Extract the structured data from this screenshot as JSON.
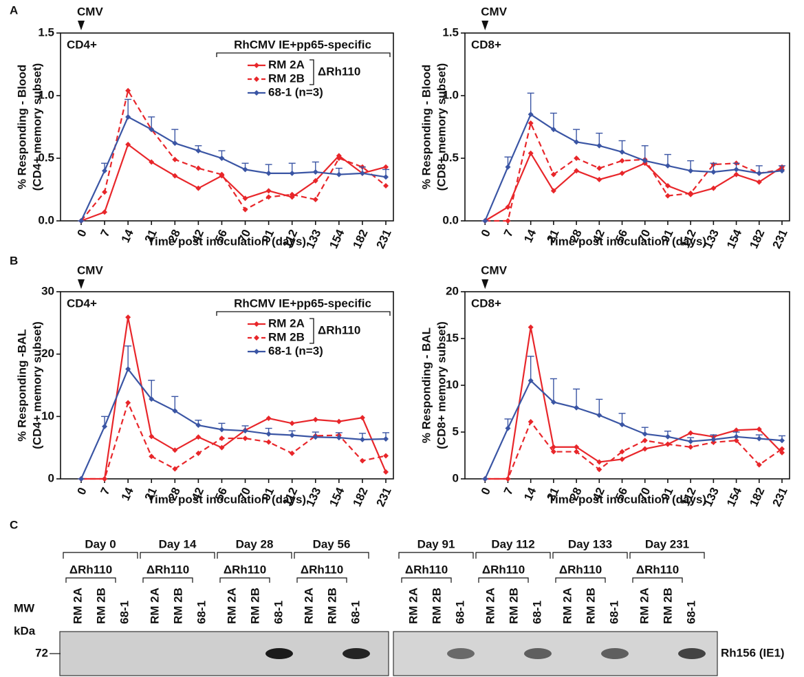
{
  "panel_labels": [
    "A",
    "B",
    "C"
  ],
  "chart_data": [
    {
      "type": "line",
      "corner_label": "CD4+",
      "annotation": "CMV",
      "ylabel": [
        "% Responding - Blood",
        "(CD4+ memory subset)"
      ],
      "xlabel": "Time post inoculation (days)",
      "categories": [
        "0",
        "7",
        "14",
        "21",
        "28",
        "42",
        "56",
        "70",
        "91",
        "112",
        "133",
        "154",
        "182",
        "231"
      ],
      "ylim": [
        0,
        1.5
      ],
      "yticks": [
        {
          "value": 0,
          "label": "0.0"
        },
        {
          "value": 0.5,
          "label": "0.5"
        },
        {
          "value": 1,
          "label": "1.0"
        },
        {
          "value": 1.5,
          "label": "1.5"
        }
      ],
      "legend_title": "RhCMV IE+pp65-specific",
      "legend_group_label": "ΔRh110",
      "series": [
        {
          "name": "RM 2A",
          "color": "#e8262a",
          "dashed": false,
          "values": [
            0,
            0.07,
            0.61,
            0.47,
            0.36,
            0.26,
            0.36,
            0.18,
            0.24,
            0.19,
            0.32,
            0.52,
            0.38,
            0.43
          ]
        },
        {
          "name": "RM 2B",
          "color": "#e8262a",
          "dashed": true,
          "values": [
            0,
            0.23,
            1.04,
            0.73,
            0.49,
            0.42,
            0.37,
            0.09,
            0.19,
            0.21,
            0.17,
            0.5,
            0.43,
            0.28
          ]
        },
        {
          "name": "68-1 (n=3)",
          "color": "#3a55a4",
          "dashed": false,
          "values": [
            0,
            0.4,
            0.83,
            0.73,
            0.62,
            0.56,
            0.5,
            0.41,
            0.38,
            0.38,
            0.39,
            0.37,
            0.38,
            0.35
          ],
          "errors": [
            0,
            0.06,
            0.14,
            0.1,
            0.11,
            0.04,
            0.06,
            0.05,
            0.07,
            0.08,
            0.08,
            0.05,
            0.05,
            0.06
          ]
        }
      ]
    },
    {
      "type": "line",
      "corner_label": "CD8+",
      "annotation": "CMV",
      "ylabel": [
        "% Responding - Blood",
        "(CD8+ memory subset)"
      ],
      "xlabel": "Time post inoculation (days)",
      "categories": [
        "0",
        "7",
        "14",
        "21",
        "28",
        "42",
        "56",
        "70",
        "91",
        "112",
        "133",
        "154",
        "182",
        "231"
      ],
      "ylim": [
        0,
        1.5
      ],
      "yticks": [
        {
          "value": 0,
          "label": "0.0"
        },
        {
          "value": 0.5,
          "label": "0.5"
        },
        {
          "value": 1,
          "label": "1.0"
        },
        {
          "value": 1.5,
          "label": "1.5"
        }
      ],
      "series": [
        {
          "color": "#e8262a",
          "dashed": false,
          "values": [
            0,
            0.11,
            0.54,
            0.24,
            0.4,
            0.33,
            0.38,
            0.46,
            0.28,
            0.21,
            0.26,
            0.37,
            0.31,
            0.43
          ]
        },
        {
          "color": "#e8262a",
          "dashed": true,
          "values": [
            0,
            0,
            0.78,
            0.37,
            0.5,
            0.42,
            0.48,
            0.49,
            0.2,
            0.22,
            0.45,
            0.46,
            0.38,
            0.41
          ]
        },
        {
          "color": "#3a55a4",
          "dashed": false,
          "values": [
            0,
            0.43,
            0.85,
            0.73,
            0.63,
            0.6,
            0.55,
            0.48,
            0.44,
            0.4,
            0.39,
            0.41,
            0.38,
            0.4
          ],
          "errors": [
            0,
            0.08,
            0.17,
            0.13,
            0.1,
            0.1,
            0.09,
            0.12,
            0.09,
            0.08,
            0.07,
            0.05,
            0.06,
            0.04
          ]
        }
      ]
    },
    {
      "type": "line",
      "corner_label": "CD4+",
      "annotation": "CMV",
      "ylabel": [
        "% Responding -BAL",
        "(CD4+ memory subset)"
      ],
      "xlabel": "Time post inoculation (days)",
      "categories": [
        "0",
        "7",
        "14",
        "21",
        "28",
        "42",
        "56",
        "70",
        "91",
        "112",
        "133",
        "154",
        "182",
        "231"
      ],
      "ylim": [
        0,
        30
      ],
      "yticks": [
        0,
        10,
        20,
        30
      ],
      "legend_title": "RhCMV IE+pp65-specific",
      "legend_group_label": "ΔRh110",
      "series": [
        {
          "name": "RM 2A",
          "color": "#e8262a",
          "dashed": false,
          "values": [
            0,
            0,
            25.9,
            6.8,
            4.6,
            6.7,
            5,
            7.8,
            9.7,
            8.9,
            9.5,
            9.2,
            9.8,
            1.1
          ]
        },
        {
          "name": "RM 2B",
          "color": "#e8262a",
          "dashed": true,
          "values": [
            0,
            0,
            12.2,
            3.6,
            1.6,
            4.1,
            6.5,
            6.5,
            5.9,
            4.1,
            6.9,
            7,
            2.9,
            3.7
          ]
        },
        {
          "name": "68-1 (n=3)",
          "color": "#3a55a4",
          "dashed": false,
          "values": [
            0,
            8.4,
            17.6,
            12.8,
            10.9,
            8.6,
            7.9,
            7.7,
            7.2,
            7,
            6.7,
            6.6,
            6.3,
            6.4
          ],
          "errors": [
            0,
            1.6,
            3.7,
            3,
            2.3,
            0.8,
            1,
            0.8,
            0.9,
            0.7,
            0.8,
            0.8,
            1,
            1
          ]
        }
      ]
    },
    {
      "type": "line",
      "corner_label": "CD8+",
      "annotation": "CMV",
      "ylabel": [
        "% Responding - BAL",
        "(CD8+ memory subset)"
      ],
      "xlabel": "Time post inoculation (days)",
      "categories": [
        "0",
        "7",
        "14",
        "21",
        "28",
        "42",
        "56",
        "70",
        "91",
        "112",
        "133",
        "154",
        "182",
        "231"
      ],
      "ylim": [
        0,
        20
      ],
      "yticks": [
        0,
        5,
        10,
        15,
        20
      ],
      "series": [
        {
          "color": "#e8262a",
          "dashed": false,
          "values": [
            0,
            0,
            16.2,
            3.4,
            3.4,
            1.8,
            2.1,
            3.2,
            3.7,
            4.9,
            4.5,
            5.2,
            5.3,
            2.8
          ]
        },
        {
          "color": "#e8262a",
          "dashed": true,
          "values": [
            0,
            0,
            6.1,
            2.9,
            2.9,
            1,
            2.9,
            4.1,
            3.7,
            3.4,
            3.9,
            4.1,
            1.5,
            3.2
          ]
        },
        {
          "color": "#3a55a4",
          "dashed": false,
          "values": [
            0,
            5.4,
            10.5,
            8.2,
            7.6,
            6.8,
            5.8,
            4.8,
            4.5,
            4,
            4.2,
            4.5,
            4.3,
            4.1
          ],
          "errors": [
            0,
            1,
            2.6,
            2.5,
            2,
            1.7,
            1.2,
            0.7,
            0.6,
            0.4,
            0.5,
            0.5,
            0.4,
            0.5
          ]
        }
      ]
    }
  ],
  "blot": {
    "mw_label": "MW",
    "unit_label": "kDa",
    "marker": 72,
    "band_label": "Rh156 (IE1)",
    "groups": [
      {
        "day": "Day 0",
        "subgroup": "ΔRh110",
        "lanes": [
          "RM 2A",
          "RM 2B",
          "68-1"
        ]
      },
      {
        "day": "Day 14",
        "subgroup": "ΔRh110",
        "lanes": [
          "RM 2A",
          "RM 2B",
          "68-1"
        ]
      },
      {
        "day": "Day 28",
        "subgroup": "ΔRh110",
        "lanes": [
          "RM 2A",
          "RM 2B",
          "68-1"
        ]
      },
      {
        "day": "Day 56",
        "subgroup": "ΔRh110",
        "lanes": [
          "RM 2A",
          "RM 2B",
          "68-1"
        ]
      },
      {
        "day": "Day 91",
        "subgroup": "ΔRh110",
        "lanes": [
          "RM 2A",
          "RM 2B",
          "68-1"
        ]
      },
      {
        "day": "Day 112",
        "subgroup": "ΔRh110",
        "lanes": [
          "RM 2A",
          "RM 2B",
          "68-1"
        ]
      },
      {
        "day": "Day 133",
        "subgroup": "ΔRh110",
        "lanes": [
          "RM 2A",
          "RM 2B",
          "68-1"
        ]
      },
      {
        "day": "Day 231",
        "subgroup": "ΔRh110",
        "lanes": [
          "RM 2A",
          "RM 2B",
          "68-1"
        ]
      }
    ]
  }
}
